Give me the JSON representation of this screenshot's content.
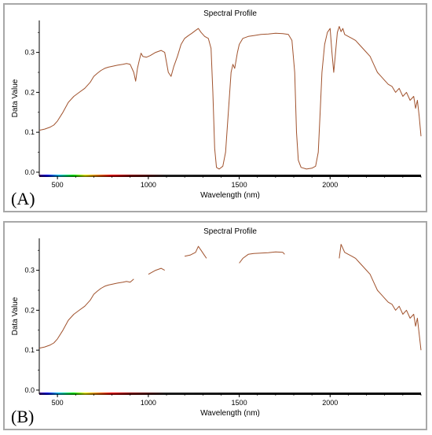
{
  "panels": [
    {
      "letter": "(A)"
    },
    {
      "letter": "(B)"
    }
  ],
  "colors": {
    "line": "#a0522d",
    "axis": "#000000",
    "spectrum": [
      "#4b0082",
      "#0000ff",
      "#00c8ff",
      "#00ff00",
      "#ffff00",
      "#ff8c00",
      "#ff0000",
      "#8b0000",
      "#2a2a2a",
      "#000000"
    ]
  },
  "chart_data": [
    {
      "type": "line",
      "title": "Spectral Profile",
      "xlabel": "Wavelength (nm)",
      "ylabel": "Data Value",
      "xlim": [
        400,
        2500
      ],
      "ylim": [
        -0.01,
        0.38
      ],
      "xticks": [
        500,
        1000,
        1500,
        2000
      ],
      "yticks": [
        0.0,
        0.1,
        0.2,
        0.3
      ],
      "ytick_labels": [
        "0.0",
        "0.1",
        "0.2",
        "0.3"
      ],
      "series": [
        {
          "segments": [
            [
              [
                400,
                0.105
              ],
              [
                430,
                0.108
              ],
              [
                460,
                0.113
              ],
              [
                480,
                0.118
              ],
              [
                500,
                0.128
              ],
              [
                530,
                0.15
              ],
              [
                560,
                0.175
              ],
              [
                590,
                0.19
              ],
              [
                620,
                0.2
              ],
              [
                650,
                0.21
              ],
              [
                680,
                0.225
              ],
              [
                700,
                0.24
              ],
              [
                720,
                0.248
              ],
              [
                740,
                0.255
              ],
              [
                760,
                0.26
              ],
              [
                780,
                0.263
              ],
              [
                800,
                0.265
              ],
              [
                830,
                0.268
              ],
              [
                860,
                0.27
              ],
              [
                880,
                0.272
              ],
              [
                900,
                0.27
              ],
              [
                920,
                0.25
              ],
              [
                930,
                0.228
              ],
              [
                940,
                0.26
              ],
              [
                950,
                0.28
              ],
              [
                960,
                0.298
              ],
              [
                970,
                0.29
              ],
              [
                990,
                0.288
              ],
              [
                1010,
                0.292
              ],
              [
                1040,
                0.3
              ],
              [
                1070,
                0.305
              ],
              [
                1090,
                0.3
              ],
              [
                1110,
                0.25
              ],
              [
                1125,
                0.24
              ],
              [
                1140,
                0.265
              ],
              [
                1160,
                0.29
              ],
              [
                1180,
                0.32
              ],
              [
                1200,
                0.335
              ],
              [
                1220,
                0.342
              ],
              [
                1240,
                0.348
              ],
              [
                1260,
                0.355
              ],
              [
                1275,
                0.36
              ],
              [
                1290,
                0.35
              ],
              [
                1310,
                0.34
              ],
              [
                1330,
                0.335
              ],
              [
                1345,
                0.31
              ],
              [
                1355,
                0.2
              ],
              [
                1365,
                0.06
              ],
              [
                1375,
                0.012
              ],
              [
                1390,
                0.008
              ],
              [
                1410,
                0.015
              ],
              [
                1425,
                0.05
              ],
              [
                1440,
                0.15
              ],
              [
                1455,
                0.25
              ],
              [
                1465,
                0.27
              ],
              [
                1475,
                0.26
              ],
              [
                1490,
                0.3
              ],
              [
                1500,
                0.32
              ],
              [
                1520,
                0.335
              ],
              [
                1550,
                0.34
              ],
              [
                1580,
                0.342
              ],
              [
                1620,
                0.345
              ],
              [
                1660,
                0.346
              ],
              [
                1700,
                0.348
              ],
              [
                1740,
                0.347
              ],
              [
                1770,
                0.345
              ],
              [
                1790,
                0.33
              ],
              [
                1805,
                0.25
              ],
              [
                1815,
                0.1
              ],
              [
                1825,
                0.03
              ],
              [
                1840,
                0.012
              ],
              [
                1870,
                0.008
              ],
              [
                1900,
                0.01
              ],
              [
                1920,
                0.015
              ],
              [
                1935,
                0.05
              ],
              [
                1945,
                0.15
              ],
              [
                1955,
                0.25
              ],
              [
                1970,
                0.32
              ],
              [
                1985,
                0.35
              ],
              [
                2000,
                0.36
              ],
              [
                2010,
                0.3
              ],
              [
                2020,
                0.25
              ],
              [
                2030,
                0.3
              ],
              [
                2040,
                0.35
              ],
              [
                2050,
                0.365
              ],
              [
                2060,
                0.352
              ],
              [
                2070,
                0.36
              ],
              [
                2080,
                0.345
              ],
              [
                2100,
                0.34
              ],
              [
                2120,
                0.335
              ],
              [
                2140,
                0.33
              ],
              [
                2160,
                0.32
              ],
              [
                2180,
                0.31
              ],
              [
                2200,
                0.3
              ],
              [
                2220,
                0.29
              ],
              [
                2240,
                0.27
              ],
              [
                2260,
                0.25
              ],
              [
                2280,
                0.24
              ],
              [
                2300,
                0.23
              ],
              [
                2320,
                0.22
              ],
              [
                2340,
                0.215
              ],
              [
                2360,
                0.2
              ],
              [
                2380,
                0.21
              ],
              [
                2400,
                0.19
              ],
              [
                2420,
                0.2
              ],
              [
                2440,
                0.18
              ],
              [
                2460,
                0.19
              ],
              [
                2470,
                0.16
              ],
              [
                2480,
                0.18
              ],
              [
                2490,
                0.14
              ],
              [
                2500,
                0.09
              ]
            ]
          ]
        }
      ]
    },
    {
      "type": "line",
      "title": "Spectral Profile",
      "xlabel": "Wavelength (nm)",
      "ylabel": "Data Value",
      "xlim": [
        400,
        2500
      ],
      "ylim": [
        -0.01,
        0.38
      ],
      "xticks": [
        500,
        1000,
        1500,
        2000
      ],
      "yticks": [
        0.0,
        0.1,
        0.2,
        0.3
      ],
      "ytick_labels": [
        "0.0",
        "0.1",
        "0.2",
        "0.3"
      ],
      "series": [
        {
          "segments": [
            [
              [
                400,
                0.105
              ],
              [
                430,
                0.108
              ],
              [
                460,
                0.113
              ],
              [
                480,
                0.118
              ],
              [
                500,
                0.128
              ],
              [
                530,
                0.15
              ],
              [
                560,
                0.175
              ],
              [
                590,
                0.19
              ],
              [
                620,
                0.2
              ],
              [
                650,
                0.21
              ],
              [
                680,
                0.225
              ],
              [
                700,
                0.24
              ],
              [
                720,
                0.248
              ],
              [
                740,
                0.255
              ],
              [
                760,
                0.26
              ],
              [
                780,
                0.263
              ],
              [
                800,
                0.265
              ],
              [
                830,
                0.268
              ],
              [
                860,
                0.27
              ],
              [
                880,
                0.272
              ],
              [
                900,
                0.27
              ],
              [
                920,
                0.278
              ]
            ],
            [
              [
                1000,
                0.29
              ],
              [
                1040,
                0.3
              ],
              [
                1070,
                0.305
              ],
              [
                1090,
                0.3
              ]
            ],
            [
              [
                1200,
                0.335
              ],
              [
                1230,
                0.338
              ],
              [
                1260,
                0.345
              ],
              [
                1275,
                0.36
              ],
              [
                1290,
                0.35
              ],
              [
                1305,
                0.34
              ],
              [
                1320,
                0.33
              ]
            ],
            [
              [
                1500,
                0.318
              ],
              [
                1520,
                0.33
              ],
              [
                1550,
                0.34
              ],
              [
                1580,
                0.342
              ],
              [
                1620,
                0.343
              ],
              [
                1660,
                0.344
              ],
              [
                1700,
                0.346
              ],
              [
                1740,
                0.345
              ],
              [
                1750,
                0.34
              ]
            ],
            [
              [
                2050,
                0.33
              ],
              [
                2060,
                0.365
              ],
              [
                2070,
                0.355
              ],
              [
                2080,
                0.345
              ],
              [
                2100,
                0.34
              ],
              [
                2120,
                0.335
              ],
              [
                2140,
                0.33
              ],
              [
                2160,
                0.32
              ],
              [
                2180,
                0.31
              ],
              [
                2200,
                0.3
              ],
              [
                2220,
                0.29
              ],
              [
                2240,
                0.27
              ],
              [
                2260,
                0.25
              ],
              [
                2280,
                0.24
              ],
              [
                2300,
                0.23
              ],
              [
                2320,
                0.22
              ],
              [
                2340,
                0.215
              ],
              [
                2360,
                0.2
              ],
              [
                2380,
                0.21
              ],
              [
                2400,
                0.19
              ],
              [
                2420,
                0.2
              ],
              [
                2440,
                0.18
              ],
              [
                2460,
                0.19
              ],
              [
                2470,
                0.16
              ],
              [
                2480,
                0.18
              ],
              [
                2490,
                0.14
              ],
              [
                2500,
                0.1
              ]
            ]
          ]
        }
      ]
    }
  ]
}
